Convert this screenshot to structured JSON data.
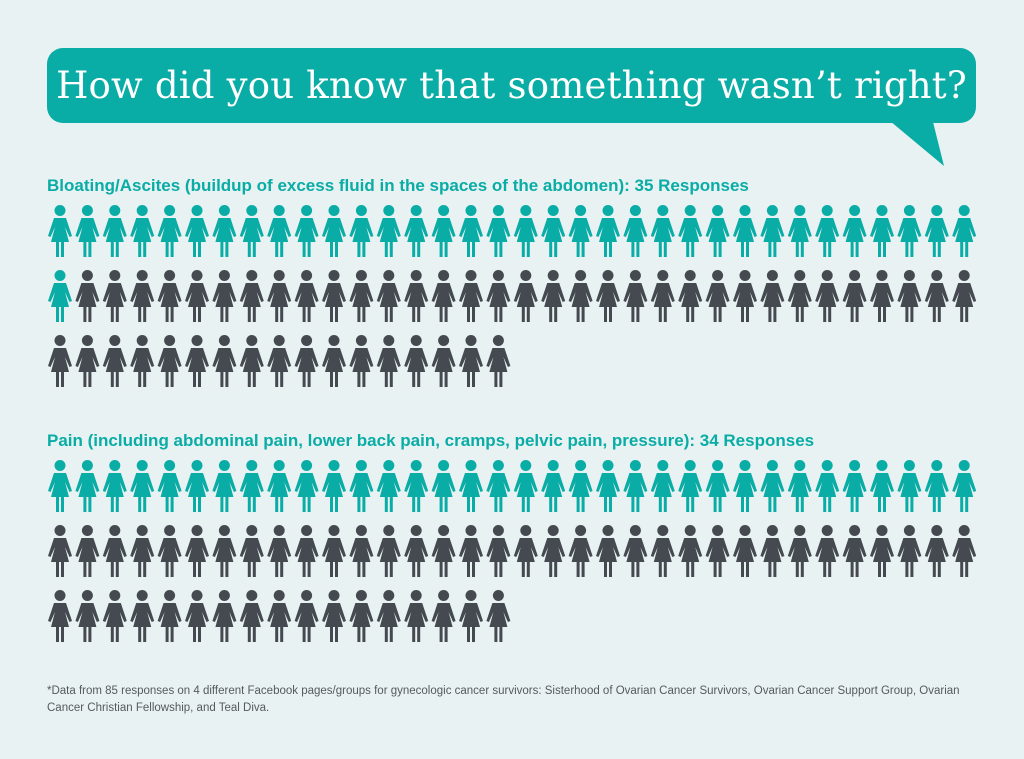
{
  "title": "How did you know that something wasn’t right?",
  "colors": {
    "accent": "#0aaca6",
    "dark": "#454950",
    "background": "#e8f2f2"
  },
  "icon": "person-female-icon",
  "chart_data": [
    {
      "type": "pictogram",
      "label": "Bloating/Ascites (buildup of excess fluid in the spaces of the abdomen): 35 Responses",
      "category": "Bloating/Ascites (buildup of excess fluid in the spaces of the abdomen)",
      "responses": 35,
      "total": 85
    },
    {
      "type": "pictogram",
      "label": "Pain (including abdominal pain, lower back pain, cramps, pelvic pain, pressure):  34 Responses",
      "category": "Pain (including abdominal pain, lower back pain, cramps, pelvic pain, pressure)",
      "responses": 34,
      "total": 85
    }
  ],
  "footnote": "*Data from 85 responses on 4 different Facebook pages/groups for gynecologic cancer survivors: Sisterhood of Ovarian Cancer Survivors, Ovarian Cancer Support Group, Ovarian Cancer Christian Fellowship, and Teal Diva."
}
